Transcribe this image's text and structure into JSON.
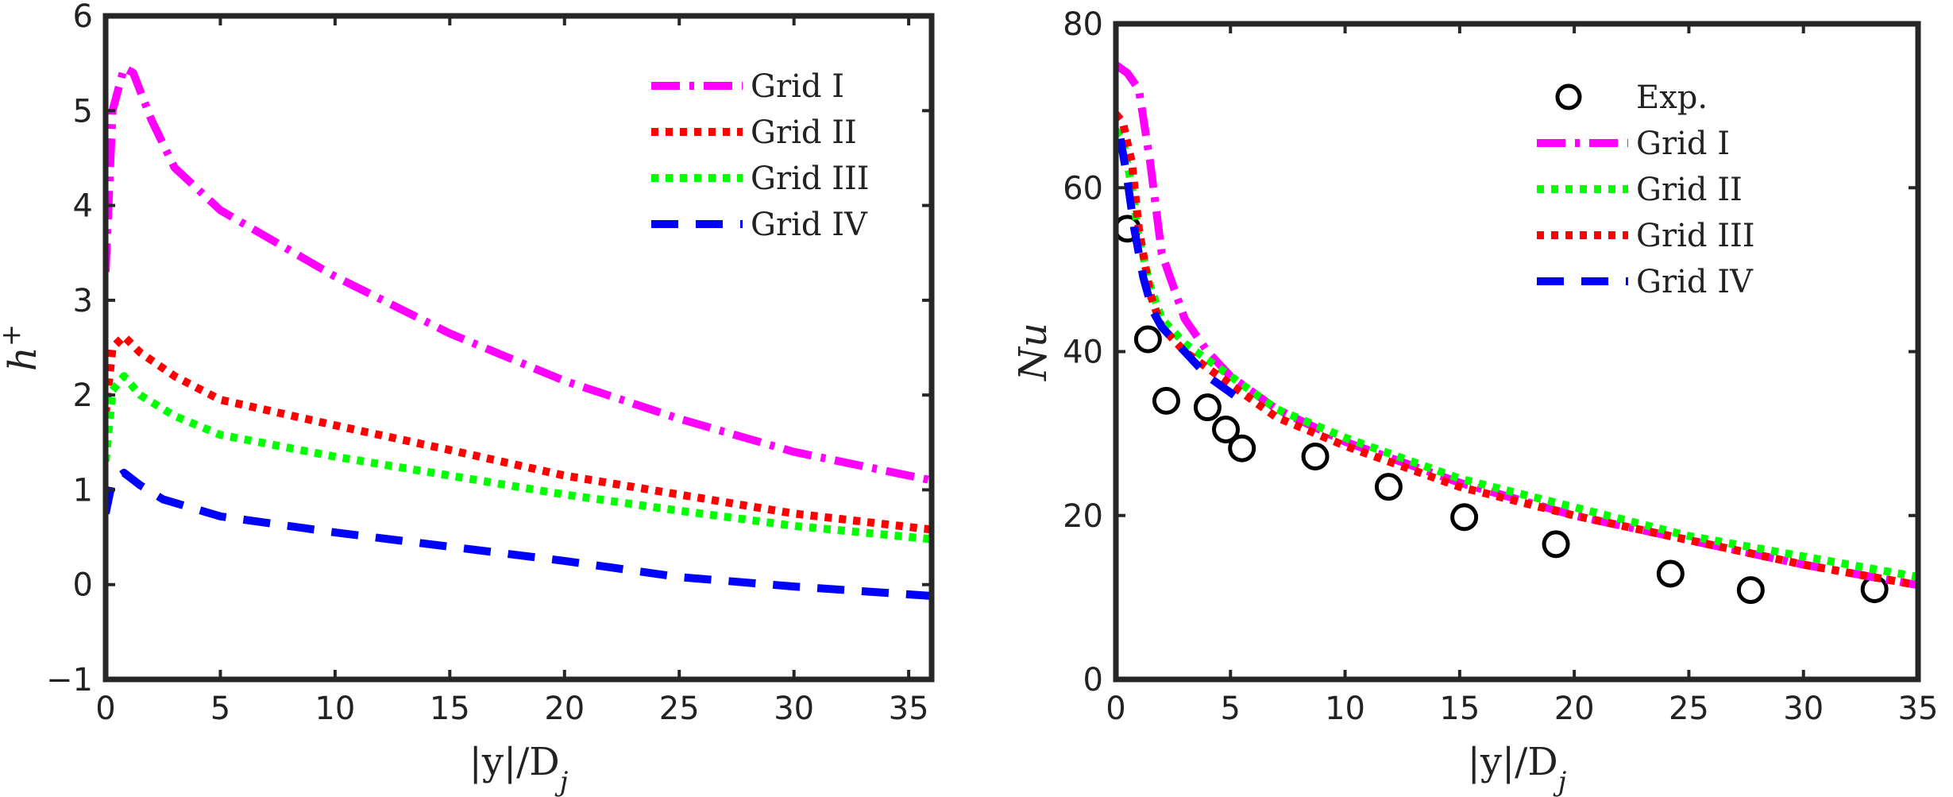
{
  "chart_data": [
    {
      "type": "line",
      "xlabel": "|y|/D_j",
      "ylabel": "h+",
      "xlim": [
        0,
        36
      ],
      "ylim": [
        -1,
        6
      ],
      "xticks": [
        0,
        5,
        10,
        15,
        20,
        25,
        30,
        35
      ],
      "yticks": [
        -1,
        0,
        1,
        2,
        3,
        4,
        5,
        6
      ],
      "legend_position": "top-right",
      "series": [
        {
          "name": "Grid I",
          "color": "#ff00ff",
          "style": "dash-dot",
          "x": [
            0,
            0.3,
            0.8,
            1.2,
            2,
            3,
            5,
            10,
            15,
            20,
            25,
            30,
            36
          ],
          "y": [
            3.3,
            5.0,
            5.45,
            5.4,
            4.9,
            4.4,
            3.95,
            3.25,
            2.65,
            2.15,
            1.75,
            1.4,
            1.1
          ]
        },
        {
          "name": "Grid II",
          "color": "#ff0000",
          "style": "dotted",
          "x": [
            0,
            0.3,
            0.8,
            1.5,
            3,
            5,
            10,
            15,
            20,
            25,
            30,
            36
          ],
          "y": [
            1.8,
            2.5,
            2.62,
            2.45,
            2.2,
            1.95,
            1.68,
            1.42,
            1.15,
            0.95,
            0.75,
            0.58
          ]
        },
        {
          "name": "Grid III",
          "color": "#00ff00",
          "style": "dotted",
          "x": [
            0,
            0.3,
            0.8,
            1.5,
            3,
            5,
            10,
            15,
            20,
            25,
            30,
            36
          ],
          "y": [
            1.3,
            2.05,
            2.2,
            2.0,
            1.78,
            1.58,
            1.35,
            1.15,
            0.95,
            0.78,
            0.62,
            0.48
          ]
        },
        {
          "name": "Grid IV",
          "color": "#0000ff",
          "style": "dashed",
          "x": [
            0,
            0.3,
            0.8,
            1.5,
            2.5,
            5,
            10,
            15,
            20,
            25,
            30,
            36
          ],
          "y": [
            0.75,
            1.1,
            1.18,
            1.05,
            0.9,
            0.72,
            0.55,
            0.4,
            0.25,
            0.08,
            -0.02,
            -0.12
          ]
        }
      ]
    },
    {
      "type": "line",
      "xlabel": "|y|/D_j",
      "ylabel": "Nu",
      "xlim": [
        0,
        35
      ],
      "ylim": [
        0,
        80
      ],
      "xticks": [
        0,
        5,
        10,
        15,
        20,
        25,
        30,
        35
      ],
      "yticks": [
        0,
        20,
        40,
        60,
        80
      ],
      "legend_position": "top-right",
      "series": [
        {
          "name": "Exp.",
          "color": "#000000",
          "style": "markers",
          "x": [
            0.5,
            1.4,
            2.2,
            4.0,
            4.8,
            5.5,
            8.7,
            11.9,
            15.2,
            19.2,
            24.2,
            27.7,
            33.1
          ],
          "y": [
            55,
            41.5,
            34,
            33.2,
            30.5,
            28.2,
            27.2,
            23.5,
            19.8,
            16.5,
            12.9,
            10.9,
            11
          ]
        },
        {
          "name": "Grid I",
          "color": "#ff00ff",
          "style": "dash-dot",
          "x": [
            0,
            0.5,
            1.0,
            1.5,
            2,
            3,
            4,
            5,
            7,
            10,
            15,
            20,
            25,
            30,
            35
          ],
          "y": [
            75,
            74,
            72,
            63,
            52,
            44,
            40,
            37,
            33,
            29,
            24,
            20,
            17,
            14,
            11.5
          ]
        },
        {
          "name": "Grid II",
          "color": "#00ff00",
          "style": "dotted",
          "x": [
            0,
            0.3,
            0.7,
            1.0,
            1.5,
            2,
            3,
            5,
            7,
            10,
            15,
            20,
            25,
            30,
            35
          ],
          "y": [
            67,
            66,
            60,
            54,
            48,
            44,
            41,
            37,
            33,
            29.5,
            24.5,
            21,
            17.5,
            15,
            12.5
          ]
        },
        {
          "name": "Grid III",
          "color": "#ff0000",
          "style": "dotted",
          "x": [
            0,
            0.3,
            0.7,
            1.0,
            1.5,
            2,
            3,
            5,
            7,
            10,
            15,
            20,
            25,
            30,
            35
          ],
          "y": [
            69,
            68,
            63,
            55,
            47,
            43,
            40,
            36,
            32,
            28.5,
            23.5,
            20,
            17,
            14,
            11.5
          ]
        },
        {
          "name": "Grid IV",
          "color": "#0000ff",
          "style": "dashed",
          "x": [
            0.2,
            0.5,
            0.8,
            1.2,
            1.6,
            2,
            3,
            4,
            5.5
          ],
          "y": [
            66,
            61,
            55,
            49,
            45,
            43,
            40,
            37,
            34
          ]
        }
      ]
    }
  ]
}
